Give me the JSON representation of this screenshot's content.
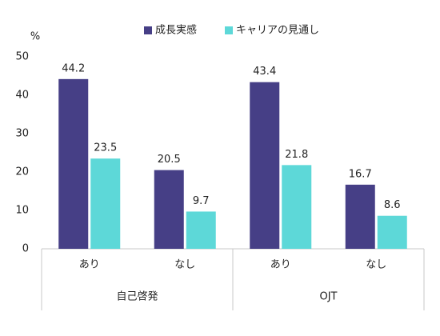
{
  "chart_data": {
    "type": "bar",
    "y_axis_label": "%",
    "categories": [
      "あり",
      "なし",
      "あり",
      "なし"
    ],
    "groups": [
      "自己啓発",
      "OJT"
    ],
    "series": [
      {
        "name": "成長実感",
        "color": "#463f86",
        "values": [
          44.2,
          20.5,
          43.4,
          16.7
        ]
      },
      {
        "name": "キャリアの見通し",
        "color": "#5dd8d8",
        "values": [
          23.5,
          9.7,
          21.8,
          8.6
        ]
      }
    ],
    "ylim": [
      0,
      50
    ],
    "yticks": [
      0,
      10,
      20,
      30,
      40,
      50
    ],
    "grid": false,
    "legend": "top"
  }
}
